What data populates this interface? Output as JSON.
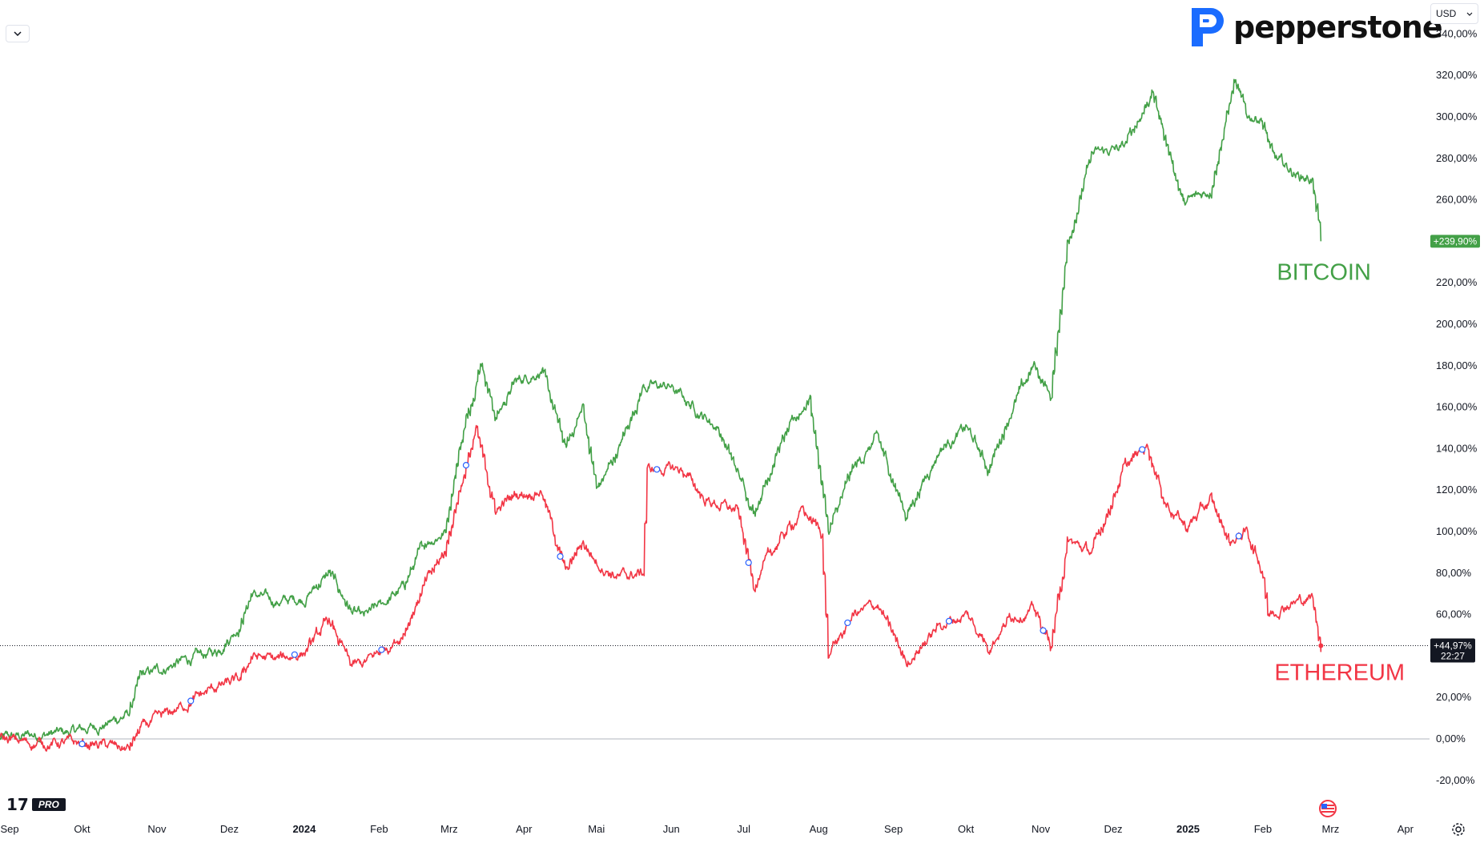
{
  "brand": {
    "name": "pepperstone",
    "brand_color": "#1a6cff"
  },
  "toolbar": {
    "currency": "USD",
    "currency_dropdown_icon": "chevron-down-icon",
    "collapse_icon": "chevron-down-icon"
  },
  "branding": {
    "platform_mark": "17",
    "platform_badge": "PRO"
  },
  "icons": {
    "settings": "gear-icon",
    "flag": "us-flag-icon"
  },
  "colors": {
    "bitcoin": "#43a047",
    "ethereum": "#f23645",
    "grid_zero": "#b2b5be",
    "text": "#131722"
  },
  "chart_data": {
    "type": "line",
    "title": "",
    "xlabel": "",
    "ylabel": "",
    "y_unit": "%",
    "ylim": [
      -25,
      345
    ],
    "y_ticks": [
      "-20,00%",
      "0,00%",
      "20,00%",
      "40,00%",
      "60,00%",
      "80,00%",
      "100,00%",
      "120,00%",
      "140,00%",
      "160,00%",
      "180,00%",
      "200,00%",
      "220,00%",
      "240,00%",
      "260,00%",
      "280,00%",
      "300,00%",
      "320,00%",
      "340,00%"
    ],
    "y_tick_values": [
      -20,
      0,
      20,
      40,
      60,
      80,
      100,
      120,
      140,
      160,
      180,
      200,
      220,
      240,
      260,
      280,
      300,
      320,
      340
    ],
    "x_ticks": [
      {
        "label": "Sep",
        "date": "2023-09-01",
        "bold": false
      },
      {
        "label": "Okt",
        "date": "2023-10-01",
        "bold": false
      },
      {
        "label": "Nov",
        "date": "2023-11-01",
        "bold": false
      },
      {
        "label": "Dez",
        "date": "2023-12-01",
        "bold": false
      },
      {
        "label": "2024",
        "date": "2024-01-01",
        "bold": true
      },
      {
        "label": "Feb",
        "date": "2024-02-01",
        "bold": false
      },
      {
        "label": "Mrz",
        "date": "2024-03-01",
        "bold": false
      },
      {
        "label": "Apr",
        "date": "2024-04-01",
        "bold": false
      },
      {
        "label": "Mai",
        "date": "2024-05-01",
        "bold": false
      },
      {
        "label": "Jun",
        "date": "2024-06-01",
        "bold": false
      },
      {
        "label": "Jul",
        "date": "2024-07-01",
        "bold": false
      },
      {
        "label": "Aug",
        "date": "2024-08-01",
        "bold": false
      },
      {
        "label": "Sep",
        "date": "2024-09-01",
        "bold": false
      },
      {
        "label": "Okt",
        "date": "2024-10-01",
        "bold": false
      },
      {
        "label": "Nov",
        "date": "2024-11-01",
        "bold": false
      },
      {
        "label": "Dez",
        "date": "2024-12-01",
        "bold": false
      },
      {
        "label": "2025",
        "date": "2025-01-01",
        "bold": true
      },
      {
        "label": "Feb",
        "date": "2025-02-01",
        "bold": false
      },
      {
        "label": "Mrz",
        "date": "2025-03-01",
        "bold": false
      },
      {
        "label": "Apr",
        "date": "2025-04-01",
        "bold": false
      }
    ],
    "x_range": [
      "2023-08-28",
      "2025-04-11"
    ],
    "grid": false,
    "series": [
      {
        "name": "BITCOIN",
        "color": "#43a047",
        "last_value_label": "+239,90%",
        "points": [
          [
            "2023-08-28",
            0
          ],
          [
            "2023-09-10",
            2
          ],
          [
            "2023-09-25",
            3
          ],
          [
            "2023-10-10",
            7
          ],
          [
            "2023-10-20",
            12
          ],
          [
            "2023-10-25",
            30
          ],
          [
            "2023-11-10",
            37
          ],
          [
            "2023-11-25",
            42
          ],
          [
            "2023-12-05",
            55
          ],
          [
            "2023-12-10",
            70
          ],
          [
            "2023-12-20",
            66
          ],
          [
            "2024-01-01",
            68
          ],
          [
            "2024-01-11",
            80
          ],
          [
            "2024-01-20",
            62
          ],
          [
            "2024-01-25",
            58
          ],
          [
            "2024-02-10",
            72
          ],
          [
            "2024-02-20",
            95
          ],
          [
            "2024-02-28",
            100
          ],
          [
            "2024-03-05",
            140
          ],
          [
            "2024-03-14",
            183
          ],
          [
            "2024-03-20",
            155
          ],
          [
            "2024-03-28",
            172
          ],
          [
            "2024-04-08",
            178
          ],
          [
            "2024-04-18",
            140
          ],
          [
            "2024-04-25",
            160
          ],
          [
            "2024-05-01",
            120
          ],
          [
            "2024-05-10",
            140
          ],
          [
            "2024-05-20",
            170
          ],
          [
            "2024-05-31",
            170
          ],
          [
            "2024-06-10",
            160
          ],
          [
            "2024-06-20",
            150
          ],
          [
            "2024-07-05",
            110
          ],
          [
            "2024-07-15",
            140
          ],
          [
            "2024-07-28",
            165
          ],
          [
            "2024-08-05",
            100
          ],
          [
            "2024-08-15",
            130
          ],
          [
            "2024-08-25",
            145
          ],
          [
            "2024-09-06",
            108
          ],
          [
            "2024-09-20",
            140
          ],
          [
            "2024-10-01",
            150
          ],
          [
            "2024-10-10",
            130
          ],
          [
            "2024-10-20",
            160
          ],
          [
            "2024-10-29",
            180
          ],
          [
            "2024-11-05",
            165
          ],
          [
            "2024-11-12",
            240
          ],
          [
            "2024-11-22",
            282
          ],
          [
            "2024-12-05",
            285
          ],
          [
            "2024-12-17",
            312
          ],
          [
            "2024-12-30",
            258
          ],
          [
            "2025-01-10",
            265
          ],
          [
            "2025-01-20",
            317
          ],
          [
            "2025-01-25",
            300
          ],
          [
            "2025-01-31",
            300
          ],
          [
            "2025-02-05",
            280
          ],
          [
            "2025-02-15",
            272
          ],
          [
            "2025-02-21",
            270
          ],
          [
            "2025-02-25",
            240
          ]
        ]
      },
      {
        "name": "ETHEREUM",
        "color": "#f23645",
        "last_value_label": "+44,97%",
        "last_time_label": "22:27",
        "points": [
          [
            "2023-08-28",
            0
          ],
          [
            "2023-09-10",
            -2
          ],
          [
            "2023-09-25",
            -2
          ],
          [
            "2023-10-10",
            -3
          ],
          [
            "2023-10-20",
            -5
          ],
          [
            "2023-10-25",
            5
          ],
          [
            "2023-11-10",
            15
          ],
          [
            "2023-11-25",
            25
          ],
          [
            "2023-12-05",
            28
          ],
          [
            "2023-12-10",
            40
          ],
          [
            "2023-12-20",
            38
          ],
          [
            "2024-01-01",
            42
          ],
          [
            "2024-01-11",
            57
          ],
          [
            "2024-01-20",
            35
          ],
          [
            "2024-01-25",
            36
          ],
          [
            "2024-02-10",
            50
          ],
          [
            "2024-02-20",
            75
          ],
          [
            "2024-02-28",
            90
          ],
          [
            "2024-03-05",
            120
          ],
          [
            "2024-03-12",
            148
          ],
          [
            "2024-03-20",
            110
          ],
          [
            "2024-03-28",
            118
          ],
          [
            "2024-04-08",
            120
          ],
          [
            "2024-04-18",
            80
          ],
          [
            "2024-04-25",
            95
          ],
          [
            "2024-05-01",
            85
          ],
          [
            "2024-05-10",
            78
          ],
          [
            "2024-05-20",
            80
          ],
          [
            "2024-05-22",
            130
          ],
          [
            "2024-06-05",
            130
          ],
          [
            "2024-06-15",
            115
          ],
          [
            "2024-06-28",
            110
          ],
          [
            "2024-07-05",
            75
          ],
          [
            "2024-07-15",
            95
          ],
          [
            "2024-07-25",
            110
          ],
          [
            "2024-08-02",
            100
          ],
          [
            "2024-08-05",
            40
          ],
          [
            "2024-08-15",
            60
          ],
          [
            "2024-08-25",
            65
          ],
          [
            "2024-09-06",
            37
          ],
          [
            "2024-09-20",
            55
          ],
          [
            "2024-10-01",
            60
          ],
          [
            "2024-10-10",
            45
          ],
          [
            "2024-10-20",
            60
          ],
          [
            "2024-10-29",
            62
          ],
          [
            "2024-11-05",
            45
          ],
          [
            "2024-11-12",
            95
          ],
          [
            "2024-11-22",
            90
          ],
          [
            "2024-12-05",
            130
          ],
          [
            "2024-12-15",
            142
          ],
          [
            "2024-12-22",
            115
          ],
          [
            "2024-12-31",
            102
          ],
          [
            "2025-01-10",
            115
          ],
          [
            "2025-01-18",
            95
          ],
          [
            "2025-01-25",
            100
          ],
          [
            "2025-02-01",
            80
          ],
          [
            "2025-02-03",
            60
          ],
          [
            "2025-02-10",
            65
          ],
          [
            "2025-02-21",
            68
          ],
          [
            "2025-02-25",
            45
          ]
        ],
        "events": [
          "2023-10-01",
          "2023-11-15",
          "2023-12-28",
          "2024-02-02",
          "2024-03-08",
          "2024-04-16",
          "2024-05-26",
          "2024-07-03",
          "2024-08-13",
          "2024-09-24",
          "2024-11-02",
          "2024-12-13",
          "2025-01-22"
        ]
      }
    ]
  }
}
